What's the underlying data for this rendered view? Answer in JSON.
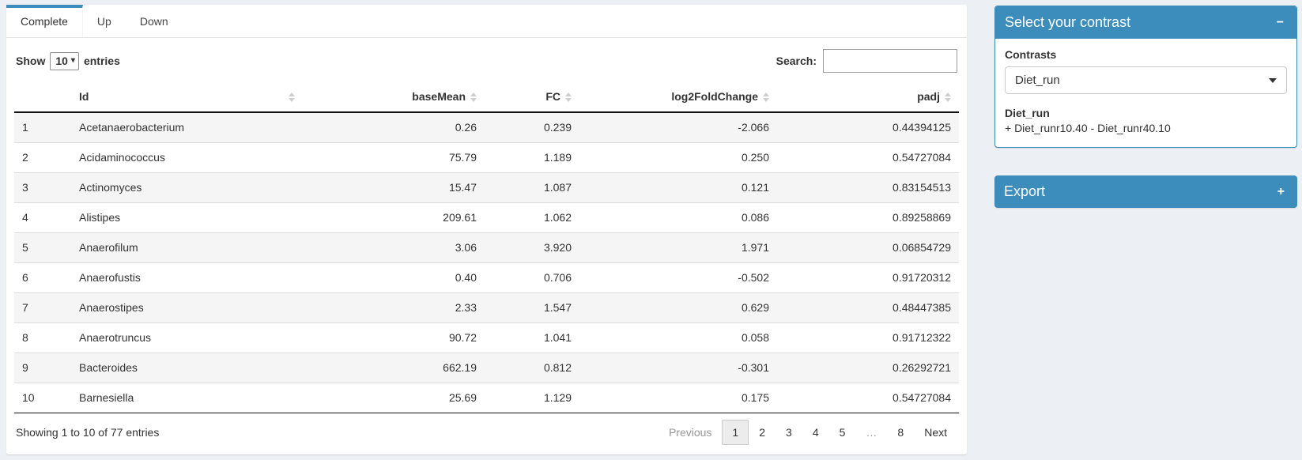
{
  "colors": {
    "accent": "#3c8dbc",
    "page_bg": "#ecf0f5"
  },
  "icons": {
    "select_caret": "▾"
  },
  "tabs": {
    "complete": "Complete",
    "up": "Up",
    "down": "Down"
  },
  "controls": {
    "show_label": "Show",
    "page_length": "10",
    "entries_label": "entries",
    "search_label": "Search:",
    "search_value": ""
  },
  "table": {
    "headers": {
      "id": "Id",
      "base_mean": "baseMean",
      "fc": "FC",
      "log2fc": "log2FoldChange",
      "padj": "padj"
    },
    "rows": [
      {
        "num": "1",
        "id": "Acetanaerobacterium",
        "base_mean": "0.26",
        "fc": "0.239",
        "log2fc": "-2.066",
        "padj": "0.44394125"
      },
      {
        "num": "2",
        "id": "Acidaminococcus",
        "base_mean": "75.79",
        "fc": "1.189",
        "log2fc": "0.250",
        "padj": "0.54727084"
      },
      {
        "num": "3",
        "id": "Actinomyces",
        "base_mean": "15.47",
        "fc": "1.087",
        "log2fc": "0.121",
        "padj": "0.83154513"
      },
      {
        "num": "4",
        "id": "Alistipes",
        "base_mean": "209.61",
        "fc": "1.062",
        "log2fc": "0.086",
        "padj": "0.89258869"
      },
      {
        "num": "5",
        "id": "Anaerofilum",
        "base_mean": "3.06",
        "fc": "3.920",
        "log2fc": "1.971",
        "padj": "0.06854729"
      },
      {
        "num": "6",
        "id": "Anaerofustis",
        "base_mean": "0.40",
        "fc": "0.706",
        "log2fc": "-0.502",
        "padj": "0.91720312"
      },
      {
        "num": "7",
        "id": "Anaerostipes",
        "base_mean": "2.33",
        "fc": "1.547",
        "log2fc": "0.629",
        "padj": "0.48447385"
      },
      {
        "num": "8",
        "id": "Anaerotruncus",
        "base_mean": "90.72",
        "fc": "1.041",
        "log2fc": "0.058",
        "padj": "0.91712322"
      },
      {
        "num": "9",
        "id": "Bacteroides",
        "base_mean": "662.19",
        "fc": "0.812",
        "log2fc": "-0.301",
        "padj": "0.26292721"
      },
      {
        "num": "10",
        "id": "Barnesiella",
        "base_mean": "25.69",
        "fc": "1.129",
        "log2fc": "0.175",
        "padj": "0.54727084"
      }
    ]
  },
  "footer": {
    "info": "Showing 1 to 10 of 77 entries",
    "previous": "Previous",
    "pages": [
      "1",
      "2",
      "3",
      "4",
      "5",
      "…",
      "8"
    ],
    "next": "Next"
  },
  "sidebar": {
    "contrast_box": {
      "title": "Select your contrast",
      "collapse_icon": "−",
      "contrasts_label": "Contrasts",
      "selected_contrast": "Diet_run",
      "contrast_name": "Diet_run",
      "contrast_detail": "+ Diet_runr10.40 - Diet_runr40.10"
    },
    "export_box": {
      "title": "Export",
      "expand_icon": "+"
    }
  }
}
